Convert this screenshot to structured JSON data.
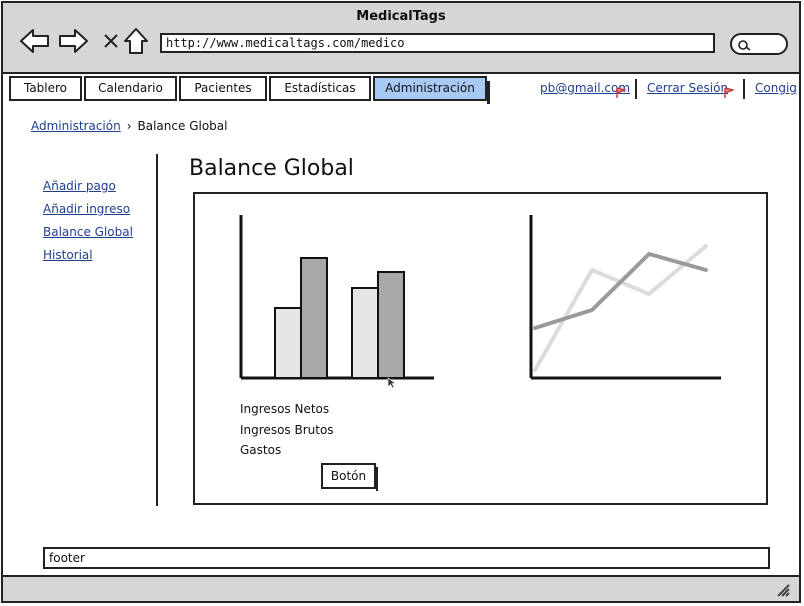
{
  "window": {
    "title": "MedicalTags"
  },
  "browser": {
    "url": "http://www.medicaltags.com/medico"
  },
  "tabs": [
    {
      "label": "Tablero"
    },
    {
      "label": "Calendario"
    },
    {
      "label": "Pacientes"
    },
    {
      "label": "Estadísticas"
    },
    {
      "label": "Administración",
      "active": true
    }
  ],
  "header_links": {
    "email": "pb@gmail.com",
    "logout": "Cerrar Sesión",
    "config": "Congig"
  },
  "breadcrumb": {
    "parent": "Administración",
    "current": "Balance Global"
  },
  "sidebar": {
    "items": [
      {
        "label": "Añadir pago"
      },
      {
        "label": "Añadir ingreso"
      },
      {
        "label": "Balance Global"
      },
      {
        "label": "Historial"
      }
    ]
  },
  "main": {
    "title": "Balance Global",
    "legend": [
      "Ingresos Netos",
      "Ingresos Brutos",
      "Gastos"
    ],
    "button_label": "Botón"
  },
  "footer": {
    "text": "footer"
  },
  "colors": {
    "active_tab": "#a9c9f5",
    "chrome": "#d6d6d6",
    "link": "#1f3f8f",
    "bar_light": "#e6e6e6",
    "bar_dark": "#a8a8a8",
    "line_dark": "#9a9a9a",
    "line_light": "#dcdcdc"
  },
  "chart_data": [
    {
      "type": "bar",
      "categories": [
        "1",
        "2"
      ],
      "series": [
        {
          "values": [
            3.5,
            4.5
          ]
        },
        {
          "values": [
            6,
            5.3
          ]
        }
      ],
      "ylim": [
        0,
        8
      ],
      "grid": false
    },
    {
      "type": "line",
      "x": [
        0,
        1,
        2,
        3
      ],
      "series": [
        {
          "values": [
            2.5,
            3.4,
            6.2,
            5.4
          ]
        },
        {
          "values": [
            0.4,
            5.4,
            4.2,
            6.6
          ]
        }
      ],
      "ylim": [
        0,
        8
      ],
      "grid": false
    }
  ]
}
